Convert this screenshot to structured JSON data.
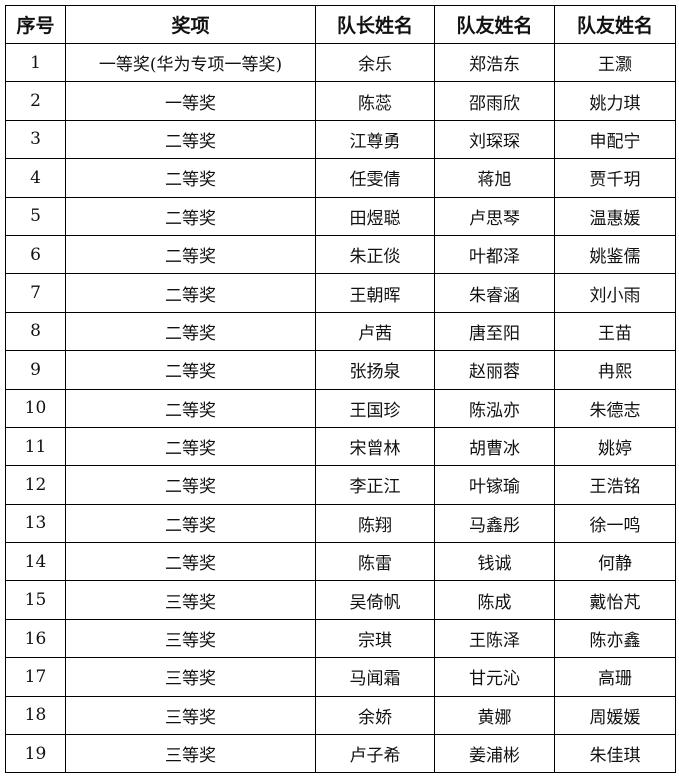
{
  "headers": [
    "序号",
    "奖项",
    "队长姓名",
    "队友姓名",
    "队友姓名"
  ],
  "rows": [
    [
      "1",
      "一等奖(华为专项一等奖)",
      "余乐",
      "郑浩东",
      "王灏"
    ],
    [
      "2",
      "一等奖",
      "陈蕊",
      "邵雨欣",
      "姚力琪"
    ],
    [
      "3",
      "二等奖",
      "江尊勇",
      "刘琛琛",
      "申配宁"
    ],
    [
      "4",
      "二等奖",
      "任雯倩",
      "蒋旭",
      "贾千玥"
    ],
    [
      "5",
      "二等奖",
      "田煜聪",
      "卢思琴",
      "温惠媛"
    ],
    [
      "6",
      "二等奖",
      "朱正倓",
      "叶都泽",
      "姚鉴儒"
    ],
    [
      "7",
      "二等奖",
      "王朝晖",
      "朱睿涵",
      "刘小雨"
    ],
    [
      "8",
      "二等奖",
      "卢茜",
      "唐至阳",
      "王苗"
    ],
    [
      "9",
      "二等奖",
      "张扬泉",
      "赵丽蓉",
      "冉熙"
    ],
    [
      "10",
      "二等奖",
      "王国珍",
      "陈泓亦",
      "朱德志"
    ],
    [
      "11",
      "二等奖",
      "宋曾林",
      "胡曹冰",
      "姚婷"
    ],
    [
      "12",
      "二等奖",
      "李正江",
      "叶镓瑜",
      "王浩铭"
    ],
    [
      "13",
      "二等奖",
      "陈翔",
      "马鑫彤",
      "徐一鸣"
    ],
    [
      "14",
      "二等奖",
      "陈雷",
      "钱诚",
      "何静"
    ],
    [
      "15",
      "三等奖",
      "吴倚帆",
      "陈成",
      "戴怡芃"
    ],
    [
      "16",
      "三等奖",
      "宗琪",
      "王陈泽",
      "陈亦鑫"
    ],
    [
      "17",
      "三等奖",
      "马闻霜",
      "甘元沁",
      "高珊"
    ],
    [
      "18",
      "三等奖",
      "余娇",
      "黄娜",
      "周媛媛"
    ],
    [
      "19",
      "三等奖",
      "卢子希",
      "姜浦彬",
      "朱佳琪"
    ]
  ]
}
